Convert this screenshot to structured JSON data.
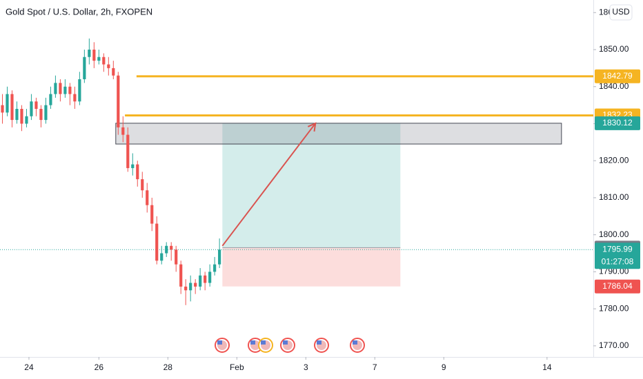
{
  "chart_data": {
    "type": "candlestick",
    "title": "Gold Spot / U.S. Dollar, 2h, FXOPEN",
    "currency": "USD",
    "up_color": "#26a69a",
    "down_color": "#ef5350",
    "open": [
      1835,
      1833,
      1838,
      1831,
      1834,
      1830,
      1832,
      1836,
      1834,
      1831,
      1835,
      1838,
      1841,
      1838,
      1840,
      1838,
      1836,
      1842,
      1848,
      1850,
      1847,
      1848,
      1846,
      1845,
      1843,
      1829,
      1827,
      1818,
      1819,
      1815,
      1812,
      1808,
      1803,
      1793,
      1795,
      1797,
      1796,
      1792,
      1786,
      1785,
      1787,
      1786,
      1789,
      1787,
      1790,
      1792
    ],
    "high": [
      1838,
      1840,
      1839,
      1836,
      1835,
      1834,
      1838,
      1837,
      1835,
      1837,
      1840,
      1843,
      1842,
      1842,
      1841,
      1840,
      1844,
      1850,
      1853,
      1852,
      1850,
      1849,
      1848,
      1847,
      1844,
      1832,
      1829,
      1822,
      1820,
      1817,
      1814,
      1810,
      1805,
      1797,
      1798,
      1798,
      1797,
      1793,
      1788,
      1789,
      1788,
      1791,
      1790,
      1792,
      1794,
      1799
    ],
    "low": [
      1830,
      1832,
      1829,
      1830,
      1828,
      1829,
      1831,
      1832,
      1829,
      1830,
      1834,
      1837,
      1836,
      1837,
      1835,
      1834,
      1835,
      1841,
      1846,
      1845,
      1846,
      1844,
      1843,
      1842,
      1827,
      1825,
      1817,
      1816,
      1813,
      1810,
      1806,
      1801,
      1792,
      1792,
      1794,
      1793,
      1790,
      1784,
      1781,
      1782,
      1784,
      1785,
      1785,
      1786,
      1789,
      1791
    ],
    "close": [
      1833,
      1838,
      1831,
      1834,
      1830,
      1832,
      1836,
      1834,
      1831,
      1835,
      1838,
      1841,
      1838,
      1840,
      1838,
      1836,
      1842,
      1848,
      1850,
      1847,
      1848,
      1846,
      1845,
      1843,
      1829,
      1827,
      1818,
      1819,
      1815,
      1812,
      1808,
      1803,
      1793,
      1795,
      1797,
      1796,
      1792,
      1786,
      1785,
      1787,
      1786,
      1789,
      1787,
      1790,
      1792,
      1795.99
    ],
    "xlim": [
      -0.5,
      122.5
    ],
    "xticks": [
      {
        "value": 5.5,
        "label": "24"
      },
      {
        "value": 20,
        "label": "26"
      },
      {
        "value": 34.3,
        "label": "28"
      },
      {
        "value": 48.6,
        "label": "Feb"
      },
      {
        "value": 62.9,
        "label": "3"
      },
      {
        "value": 77.2,
        "label": "7"
      },
      {
        "value": 91.5,
        "label": "9"
      },
      {
        "value": 112.9,
        "label": "14"
      }
    ],
    "ylim": [
      1767.0,
      1863.4
    ],
    "yticks": [
      {
        "value": 1770,
        "label": "1770.00"
      },
      {
        "value": 1780,
        "label": "1780.00"
      },
      {
        "value": 1790,
        "label": "1790.00"
      },
      {
        "value": 1800,
        "label": "1800.00"
      },
      {
        "value": 1810,
        "label": "1810.00"
      },
      {
        "value": 1820,
        "label": "1820.00"
      },
      {
        "value": 1830,
        "label": "1830.00"
      },
      {
        "value": 1840,
        "label": "1840.00"
      },
      {
        "value": 1850,
        "label": "1850.00"
      },
      {
        "value": 1860,
        "label": "1860.00"
      }
    ],
    "levels": [
      {
        "value": 1842.79,
        "color": "#f5b422",
        "start": 27.8
      },
      {
        "value": 1832.23,
        "color": "#f5b422",
        "start": 25.4
      }
    ],
    "zone": {
      "top": 1830.12,
      "bottom": 1824.5,
      "start": 23.5,
      "end": 115.9
    },
    "position": {
      "entry": 1796.53,
      "target": 1830.12,
      "stop": 1786.04,
      "start": 45.6,
      "end": 82.5
    },
    "arrow": {
      "from": [
        45.6,
        1797
      ],
      "to": [
        64.9,
        1830.1
      ]
    },
    "last_price": {
      "value": 1795.99,
      "countdown": "01:27:08"
    }
  }
}
